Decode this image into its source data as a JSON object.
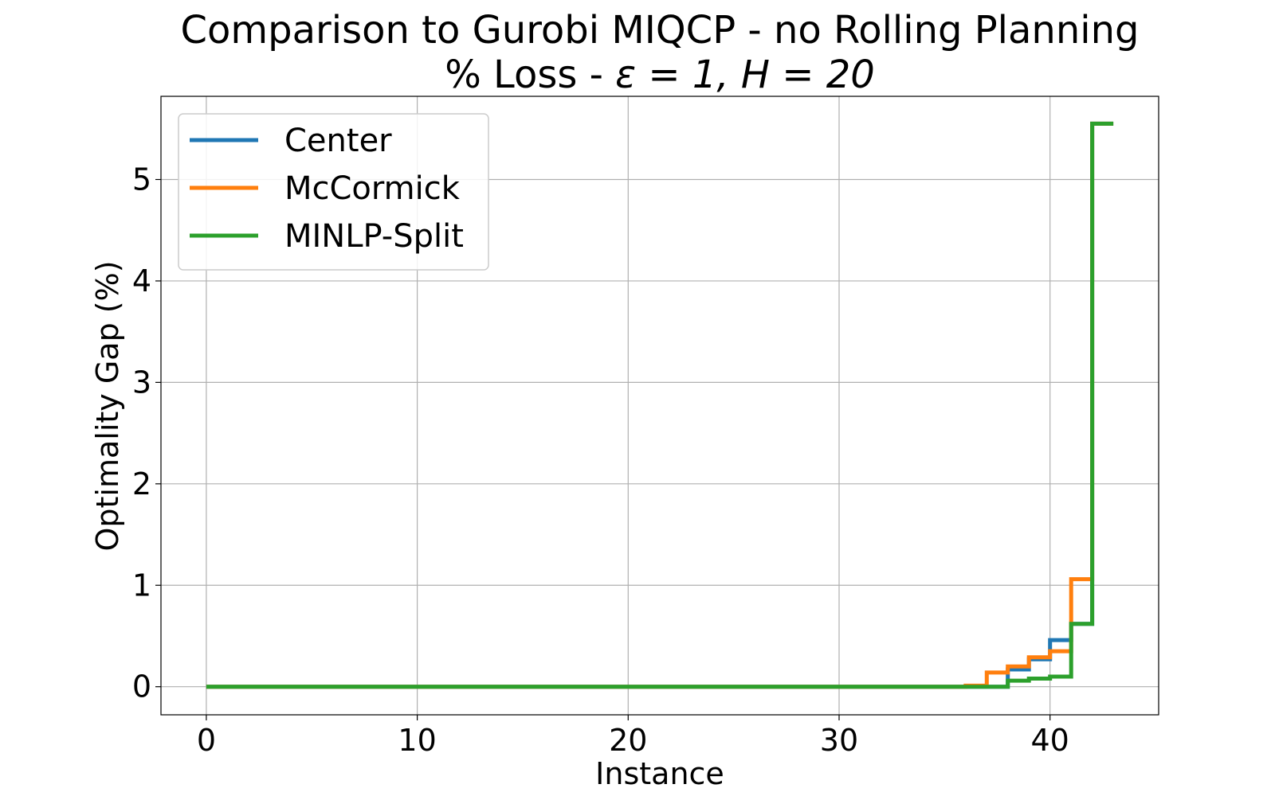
{
  "chart_data": {
    "type": "line",
    "step": "post",
    "title_line1": "Comparison to Gurobi MIQCP - no Rolling Planning",
    "title_line2_prefix": "% Loss - ",
    "title_line2_math": "ε = 1, H = 20",
    "xlabel": "Instance",
    "ylabel": "Optimality Gap (%)",
    "xlim": [
      -2.15,
      45.15
    ],
    "ylim": [
      -0.277,
      5.82
    ],
    "xticks": [
      0,
      10,
      20,
      30,
      40
    ],
    "yticks": [
      0,
      1,
      2,
      3,
      4,
      5
    ],
    "grid": true,
    "legend_position": "upper-left",
    "x": [
      0,
      1,
      2,
      3,
      4,
      5,
      6,
      7,
      8,
      9,
      10,
      11,
      12,
      13,
      14,
      15,
      16,
      17,
      18,
      19,
      20,
      21,
      22,
      23,
      24,
      25,
      26,
      27,
      28,
      29,
      30,
      31,
      32,
      33,
      34,
      35,
      36,
      37,
      38,
      39,
      40,
      41,
      42,
      43
    ],
    "series": [
      {
        "name": "Center",
        "color": "#1f77b4",
        "values": [
          0,
          0,
          0,
          0,
          0,
          0,
          0,
          0,
          0,
          0,
          0,
          0,
          0,
          0,
          0,
          0,
          0,
          0,
          0,
          0,
          0,
          0,
          0,
          0,
          0,
          0,
          0,
          0,
          0,
          0,
          0,
          0,
          0,
          0,
          0,
          0,
          0,
          0,
          0.17,
          0.27,
          0.46,
          0.62,
          5.55,
          5.55
        ]
      },
      {
        "name": "McCormick",
        "color": "#ff7f0e",
        "values": [
          0,
          0,
          0,
          0,
          0,
          0,
          0,
          0,
          0,
          0,
          0,
          0,
          0,
          0,
          0,
          0,
          0,
          0,
          0,
          0,
          0,
          0,
          0,
          0,
          0,
          0,
          0,
          0,
          0,
          0,
          0,
          0,
          0,
          0,
          0,
          0,
          0.01,
          0.14,
          0.2,
          0.29,
          0.35,
          1.06,
          5.55,
          5.55
        ]
      },
      {
        "name": "MINLP-Split",
        "color": "#2ca02c",
        "values": [
          0,
          0,
          0,
          0,
          0,
          0,
          0,
          0,
          0,
          0,
          0,
          0,
          0,
          0,
          0,
          0,
          0,
          0,
          0,
          0,
          0,
          0,
          0,
          0,
          0,
          0,
          0,
          0,
          0,
          0,
          0,
          0,
          0,
          0,
          0,
          0,
          0,
          0,
          0.06,
          0.08,
          0.1,
          0.62,
          5.55,
          5.55
        ]
      }
    ]
  }
}
